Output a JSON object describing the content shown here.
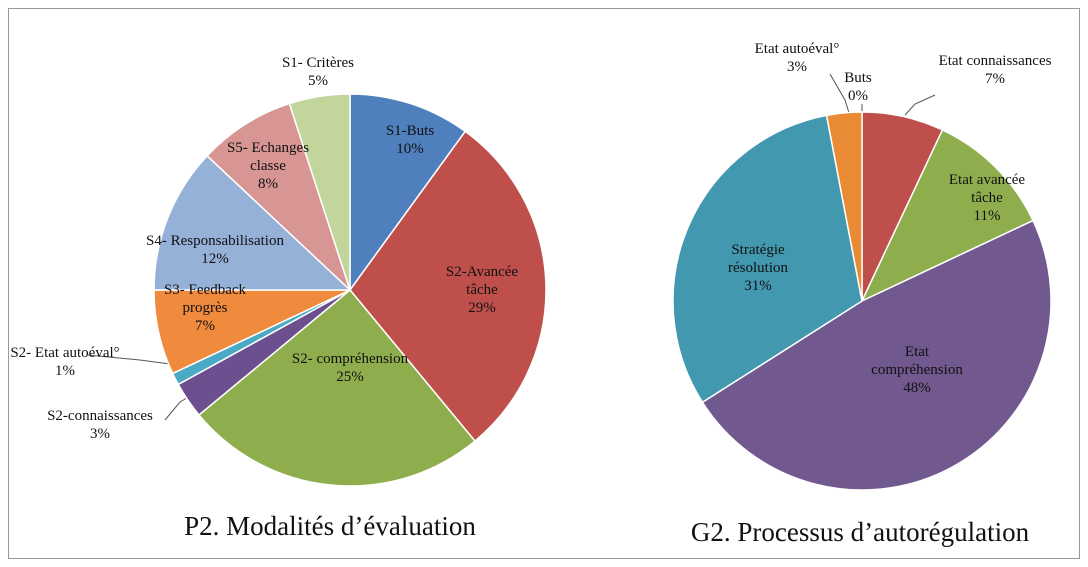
{
  "chart_data": [
    {
      "type": "pie",
      "title": "P2. Modalités d’évaluation",
      "categories": [
        "S1-Buts",
        "S2-Avancée tâche",
        "S2- compréhension",
        "S2-connaissances",
        "S2- Etat autoéval°",
        "S3- Feedback progrès",
        "S4- Responsabilisation",
        "S5- Echanges classe",
        "S1- Critères"
      ],
      "values": [
        10,
        29,
        25,
        3,
        1,
        7,
        12,
        8,
        5
      ],
      "value_labels": [
        "10%",
        "29%",
        "25%",
        "3%",
        "1%",
        "7%",
        "12%",
        "8%",
        "5%"
      ],
      "colors": [
        "#4f7fbc",
        "#bf4f4b",
        "#8eae4e",
        "#6c4f8e",
        "#4aa9c4",
        "#f08a3c",
        "#95b1d8",
        "#d79694",
        "#c2d69b"
      ]
    },
    {
      "type": "pie",
      "title": "G2. Processus d’autorégulation",
      "categories": [
        "Buts",
        "Etat connaissances",
        "Etat avancée tâche",
        "Etat compréhension",
        "Stratégie résolution",
        "Etat autoéval°"
      ],
      "values": [
        0,
        7,
        11,
        48,
        31,
        3
      ],
      "value_labels": [
        "0%",
        "7%",
        "11%",
        "48%",
        "31%",
        "3%"
      ],
      "colors": [
        "#4f7fbc",
        "#bf4f4b",
        "#8eae4e",
        "#71588f",
        "#4198af",
        "#e98a34"
      ]
    }
  ]
}
